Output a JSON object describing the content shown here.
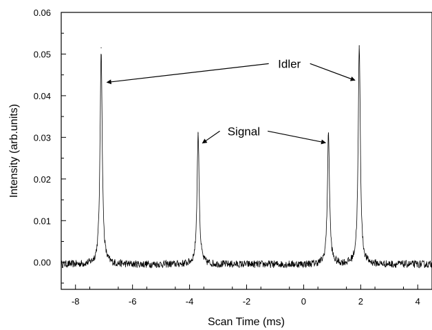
{
  "chart_data": {
    "type": "line",
    "xlabel": "Scan Time (ms)",
    "ylabel": "Intensity (arb.units)",
    "xlim": [
      -8.5,
      4.5
    ],
    "ylim": [
      -0.0065,
      0.06
    ],
    "x_ticks": [
      "-8",
      "-6",
      "-4",
      "-2",
      "0",
      "2",
      "4"
    ],
    "x_tick_values": [
      -8,
      -6,
      -4,
      -2,
      0,
      2,
      4
    ],
    "y_ticks": [
      "0.06",
      "0.05",
      "0.04",
      "0.03",
      "0.02",
      "0.01",
      "0.00"
    ],
    "y_tick_values": [
      0.06,
      0.05,
      0.04,
      0.03,
      0.02,
      0.01,
      0.0
    ],
    "grid": false,
    "legend": "none",
    "series": [
      {
        "baseline": -0.0005,
        "noise_amplitude": 0.0009,
        "peaks": [
          {
            "x": -7.1,
            "height": 0.0515
          },
          {
            "x": -3.7,
            "height": 0.031
          },
          {
            "x": 0.87,
            "height": 0.031
          },
          {
            "x": 1.95,
            "height": 0.052
          }
        ]
      }
    ],
    "annotations": [
      {
        "text": "Idler",
        "text_x": -0.5,
        "text_y": 0.0477,
        "targets": [
          [
            -6.9,
            0.0432
          ],
          [
            1.8,
            0.0437
          ]
        ]
      },
      {
        "text": "Signal",
        "text_x": -2.1,
        "text_y": 0.0315,
        "targets": [
          [
            -3.55,
            0.0286
          ],
          [
            0.77,
            0.0287
          ]
        ]
      }
    ]
  }
}
